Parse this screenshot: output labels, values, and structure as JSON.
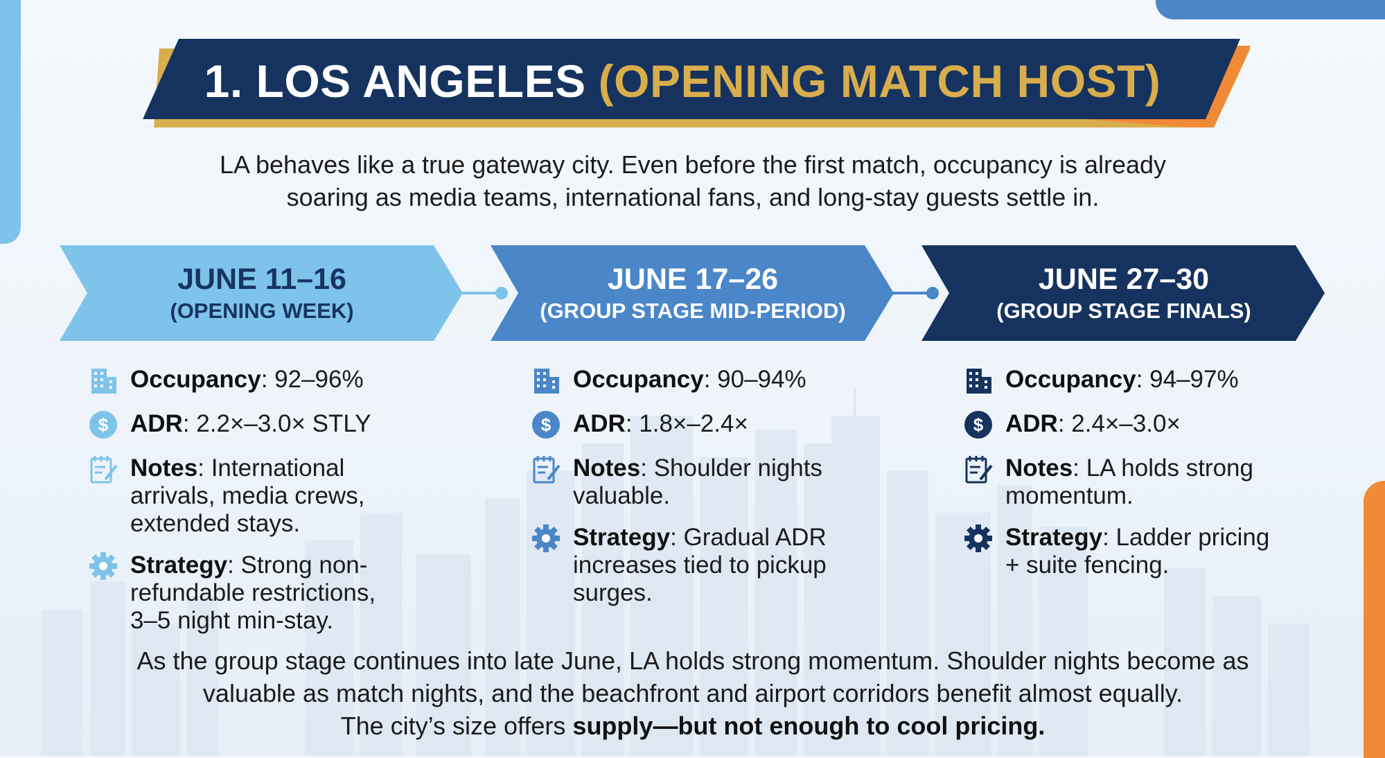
{
  "colors": {
    "navy": "#16335f",
    "gold": "#d8ae4d",
    "orange": "#f08a36",
    "light_blue": "#7ec3ea",
    "mid_blue": "#4a86c8",
    "dark_blue": "#16335f"
  },
  "title": {
    "main": "1. LOS ANGELES",
    "accent": "(OPENING MATCH HOST)"
  },
  "intro": {
    "line1": "LA behaves like a true gateway city. Even before the first match, occupancy is already",
    "line2": "soaring as media teams, international fans, and long-stay guests settle in."
  },
  "periods": [
    {
      "dates": "JUNE 11–16",
      "subtitle": "(OPENING WEEK)",
      "occupancy_label": "Occupancy",
      "occupancy": ": 92–96%",
      "adr_label": "ADR",
      "adr": ": 2.2×–3.0× STLY",
      "notes_label": "Notes",
      "notes": ": International arrivals, media crews, extended stays.",
      "strategy_label": "Strategy",
      "strategy": ": Strong non-refundable restrictions, 3–5 night min-stay."
    },
    {
      "dates": "JUNE 17–26",
      "subtitle": "(GROUP STAGE MID-PERIOD)",
      "occupancy_label": "Occupancy",
      "occupancy": ": 90–94%",
      "adr_label": "ADR",
      "adr": ": 1.8×–2.4×",
      "notes_label": "Notes",
      "notes": ": Shoulder nights valuable.",
      "strategy_label": "Strategy",
      "strategy": ": Gradual ADR increases tied to pickup surges."
    },
    {
      "dates": "JUNE 27–30",
      "subtitle": "(GROUP STAGE FINALS)",
      "occupancy_label": "Occupancy",
      "occupancy": ": 94–97%",
      "adr_label": "ADR",
      "adr": ": 2.4×–3.0×",
      "notes_label": "Notes",
      "notes": ": LA holds strong momentum.",
      "strategy_label": "Strategy",
      "strategy": ": Ladder pricing + suite fencing."
    }
  ],
  "icons": [
    "building-icon",
    "dollar-icon",
    "notepad-icon",
    "gear-icon"
  ],
  "outro": {
    "line1": "As the group stage continues into late June, LA holds strong momentum. Shoulder nights become as",
    "line2": "valuable as match nights, and the beachfront and airport corridors benefit almost equally.",
    "line3_plain": "The city’s size offers ",
    "line3_bold": "supply—but not enough to cool pricing."
  }
}
